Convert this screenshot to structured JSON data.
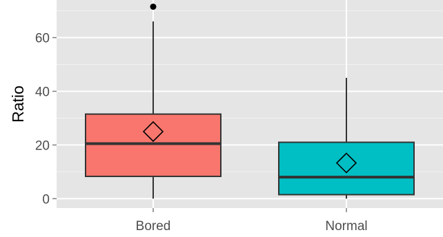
{
  "chart_data": {
    "type": "boxplot",
    "ylabel": "Ratio",
    "xlabel": "",
    "ylim": [
      -3.5,
      74
    ],
    "y_ticks": [
      0,
      20,
      40,
      60
    ],
    "y_tick_labels": [
      "0",
      "20",
      "40",
      "60"
    ],
    "grid": true,
    "categories": [
      "Bored",
      "Normal"
    ],
    "boxes": [
      {
        "category": "Bored",
        "min": 0,
        "q1": 8.3,
        "median": 20.5,
        "q3": 31.5,
        "max": 66,
        "mean": 25,
        "outliers": [
          71.5
        ],
        "color": "#F8766D"
      },
      {
        "category": "Normal",
        "min": 0,
        "q1": 1.5,
        "median": 8,
        "q3": 21,
        "max": 45,
        "mean": 13.3,
        "outliers": [],
        "color": "#00BFC4"
      }
    ],
    "colors": {
      "panel": "#E5E5E5",
      "grid_major": "#FFFFFF",
      "grid_minor": "#F2F2F2",
      "outline": "#333333"
    }
  }
}
